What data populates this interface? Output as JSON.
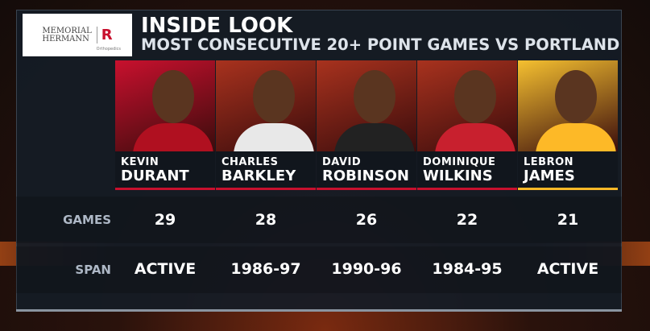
{
  "sponsor": {
    "line1": "MEMORIAL",
    "line2": "HERMANN",
    "sub": "Orthopedics",
    "mark": "R"
  },
  "header": {
    "title": "INSIDE LOOK",
    "subtitle": "MOST CONSECUTIVE 20+ POINT GAMES VS PORTLAND"
  },
  "row_labels": {
    "games": "GAMES",
    "span": "SPAN"
  },
  "players": [
    {
      "first": "KEVIN",
      "last": "DURANT",
      "games": "29",
      "span": "ACTIVE",
      "bg": "#c8102e",
      "jersey": "#b01020",
      "accent": "#c8102e"
    },
    {
      "first": "CHARLES",
      "last": "BARKLEY",
      "games": "28",
      "span": "1986-97",
      "bg": "#a8321e",
      "jersey": "#e8e8e8",
      "accent": "#c8102e"
    },
    {
      "first": "DAVID",
      "last": "ROBINSON",
      "games": "26",
      "span": "1990-96",
      "bg": "#a8321e",
      "jersey": "#222",
      "accent": "#c8102e"
    },
    {
      "first": "DOMINIQUE",
      "last": "WILKINS",
      "games": "22",
      "span": "1984-95",
      "bg": "#a8321e",
      "jersey": "#c8202e",
      "accent": "#c8102e"
    },
    {
      "first": "LEBRON",
      "last": "JAMES",
      "games": "21",
      "span": "ACTIVE",
      "bg": "#f5c030",
      "jersey": "#fdb927",
      "accent": "#fdb927"
    }
  ]
}
